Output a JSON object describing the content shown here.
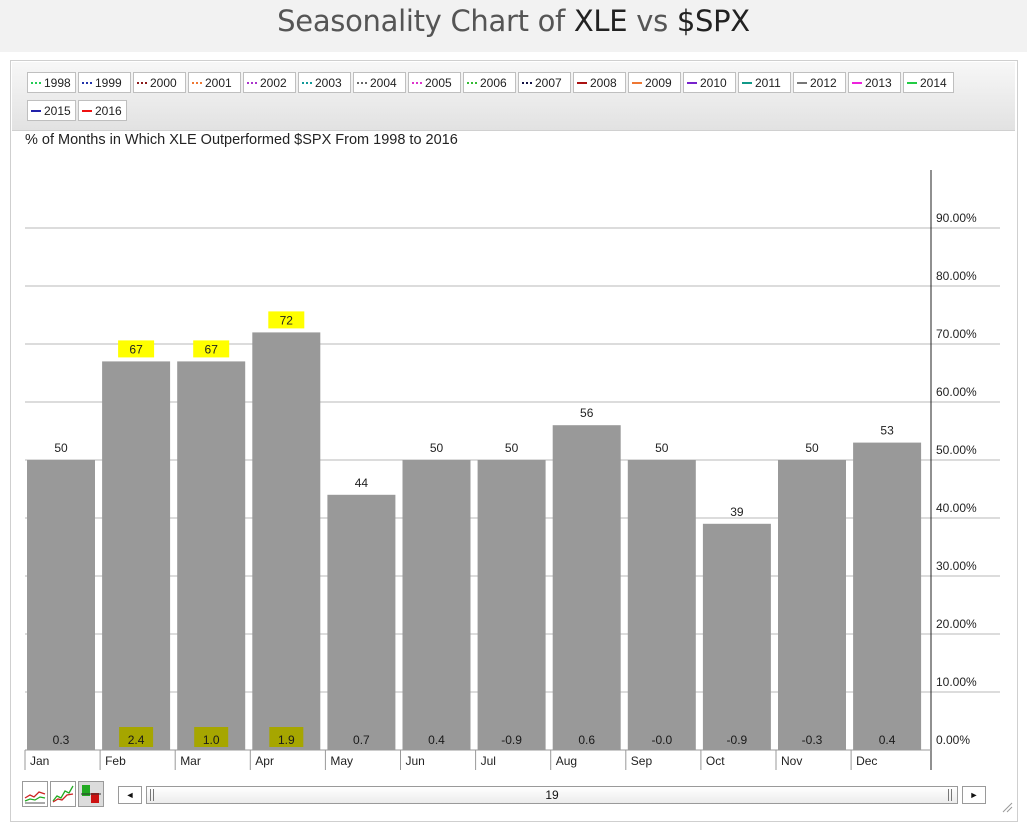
{
  "page": {
    "title_prefix": "Seasonality Chart of ",
    "symbol1": "XLE",
    "vs": " vs ",
    "symbol2": "$SPX"
  },
  "legend": [
    {
      "label": "1998",
      "color": "#22cc55",
      "style": "dotted"
    },
    {
      "label": "1999",
      "color": "#2233aa",
      "style": "dotted"
    },
    {
      "label": "2000",
      "color": "#8b1a1a",
      "style": "dotted"
    },
    {
      "label": "2001",
      "color": "#ee7733",
      "style": "dotted"
    },
    {
      "label": "2002",
      "color": "#aa33cc",
      "style": "dotted"
    },
    {
      "label": "2003",
      "color": "#119999",
      "style": "dotted"
    },
    {
      "label": "2004",
      "color": "#666666",
      "style": "dotted"
    },
    {
      "label": "2005",
      "color": "#dd33cc",
      "style": "dotted"
    },
    {
      "label": "2006",
      "color": "#33bb33",
      "style": "dotted"
    },
    {
      "label": "2007",
      "color": "#111144",
      "style": "dotted"
    },
    {
      "label": "2008",
      "color": "#aa1111",
      "style": "solid"
    },
    {
      "label": "2009",
      "color": "#ee7733",
      "style": "solid"
    },
    {
      "label": "2010",
      "color": "#7722cc",
      "style": "solid"
    },
    {
      "label": "2011",
      "color": "#119988",
      "style": "solid"
    },
    {
      "label": "2012",
      "color": "#777777",
      "style": "solid"
    },
    {
      "label": "2013",
      "color": "#ee22dd",
      "style": "solid"
    },
    {
      "label": "2014",
      "color": "#22cc44",
      "style": "solid"
    },
    {
      "label": "2015",
      "color": "#2222aa",
      "style": "solid"
    },
    {
      "label": "2016",
      "color": "#ee1111",
      "style": "solid"
    }
  ],
  "chart_data": {
    "type": "bar",
    "title": "% of Months in Which XLE Outperformed $SPX From 1998 to 2016",
    "categories": [
      "Jan",
      "Feb",
      "Mar",
      "Apr",
      "May",
      "Jun",
      "Jul",
      "Aug",
      "Sep",
      "Oct",
      "Nov",
      "Dec"
    ],
    "values": [
      50,
      67,
      67,
      72,
      44,
      50,
      50,
      56,
      50,
      39,
      50,
      53
    ],
    "value_labels": [
      "50",
      "67",
      "67",
      "72",
      "44",
      "50",
      "50",
      "56",
      "50",
      "39",
      "50",
      "53"
    ],
    "bottom_labels": [
      "0.3",
      "2.4",
      "1.0",
      "1.9",
      "0.7",
      "0.4",
      "-0.9",
      "0.6",
      "-0.0",
      "-0.9",
      "-0.3",
      "0.4"
    ],
    "highlight_top": [
      false,
      true,
      true,
      true,
      false,
      false,
      false,
      false,
      false,
      false,
      false,
      false
    ],
    "highlight_bottom": [
      false,
      true,
      true,
      true,
      false,
      false,
      false,
      false,
      false,
      false,
      false,
      false
    ],
    "ylim": [
      0,
      100
    ],
    "yticks": [
      0,
      10,
      20,
      30,
      40,
      50,
      60,
      70,
      80,
      90
    ],
    "ytick_labels": [
      "0.00%",
      "10.00%",
      "20.00%",
      "30.00%",
      "40.00%",
      "50.00%",
      "60.00%",
      "70.00%",
      "80.00%",
      "90.00%"
    ],
    "grid": true,
    "y_axis_side": "right",
    "bar_color": "#999999",
    "highlight_top_color": "#ffff00",
    "highlight_bottom_color": "#a6a600"
  },
  "scrollbar": {
    "value": "19",
    "left_arrow": "◄",
    "right_arrow": "►"
  }
}
